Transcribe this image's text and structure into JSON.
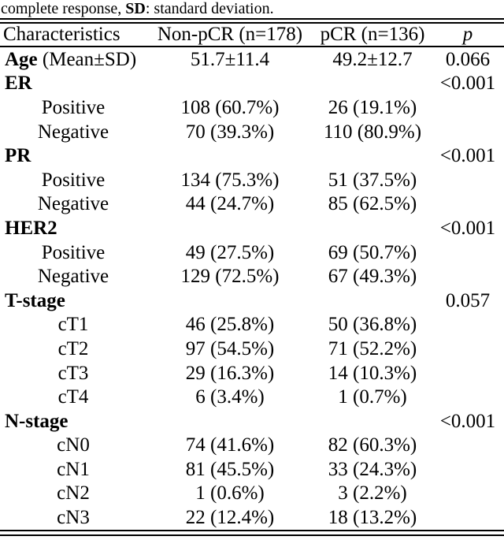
{
  "colors": {
    "background": "#ffffff",
    "text": "#000000",
    "rules": "#000000"
  },
  "caption": {
    "text_before": "complete response, ",
    "bold_term": "SD",
    "text_after": ": standard deviation."
  },
  "table": {
    "headers": {
      "characteristics": "Characteristics",
      "non_pcr": "Non-pCR (n=178)",
      "pcr": "pCR (n=136)",
      "p": "p"
    },
    "rows": [
      {
        "label": "Age",
        "bold": true,
        "rest": " (Mean±SD)",
        "indent": false,
        "non_pcr": "51.7±11.4",
        "pcr": "49.2±12.7",
        "p": "0.066"
      },
      {
        "label": "ER",
        "bold": true,
        "rest": "",
        "indent": false,
        "non_pcr": "",
        "pcr": "",
        "p": "<0.001"
      },
      {
        "label": "Positive",
        "bold": false,
        "rest": "",
        "indent": true,
        "non_pcr": "108 (60.7%)",
        "pcr": "26 (19.1%)",
        "p": ""
      },
      {
        "label": "Negative",
        "bold": false,
        "rest": "",
        "indent": true,
        "non_pcr": "70 (39.3%)",
        "pcr": "110 (80.9%)",
        "p": ""
      },
      {
        "label": "PR",
        "bold": true,
        "rest": "",
        "indent": false,
        "non_pcr": "",
        "pcr": "",
        "p": "<0.001"
      },
      {
        "label": "Positive",
        "bold": false,
        "rest": "",
        "indent": true,
        "non_pcr": "134 (75.3%)",
        "pcr": "51 (37.5%)",
        "p": ""
      },
      {
        "label": "Negative",
        "bold": false,
        "rest": "",
        "indent": true,
        "non_pcr": "44 (24.7%)",
        "pcr": "85 (62.5%)",
        "p": ""
      },
      {
        "label": "HER2",
        "bold": true,
        "rest": "",
        "indent": false,
        "non_pcr": "",
        "pcr": "",
        "p": "<0.001"
      },
      {
        "label": "Positive",
        "bold": false,
        "rest": "",
        "indent": true,
        "non_pcr": "49 (27.5%)",
        "pcr": "69 (50.7%)",
        "p": ""
      },
      {
        "label": "Negative",
        "bold": false,
        "rest": "",
        "indent": true,
        "non_pcr": "129 (72.5%)",
        "pcr": "67 (49.3%)",
        "p": ""
      },
      {
        "label": "T-stage",
        "bold": true,
        "rest": "",
        "indent": false,
        "non_pcr": "",
        "pcr": "",
        "p": "0.057"
      },
      {
        "label": "cT1",
        "bold": false,
        "rest": "",
        "indent": true,
        "non_pcr": "46 (25.8%)",
        "pcr": "50 (36.8%)",
        "p": ""
      },
      {
        "label": "cT2",
        "bold": false,
        "rest": "",
        "indent": true,
        "non_pcr": "97 (54.5%)",
        "pcr": "71 (52.2%)",
        "p": ""
      },
      {
        "label": "cT3",
        "bold": false,
        "rest": "",
        "indent": true,
        "non_pcr": "29 (16.3%)",
        "pcr": "14 (10.3%)",
        "p": ""
      },
      {
        "label": "cT4",
        "bold": false,
        "rest": "",
        "indent": true,
        "non_pcr": "6 (3.4%)",
        "pcr": "1 (0.7%)",
        "p": ""
      },
      {
        "label": "N-stage",
        "bold": true,
        "rest": "",
        "indent": false,
        "non_pcr": "",
        "pcr": "",
        "p": "<0.001"
      },
      {
        "label": "cN0",
        "bold": false,
        "rest": "",
        "indent": true,
        "non_pcr": "74 (41.6%)",
        "pcr": "82 (60.3%)",
        "p": ""
      },
      {
        "label": "cN1",
        "bold": false,
        "rest": "",
        "indent": true,
        "non_pcr": "81 (45.5%)",
        "pcr": "33 (24.3%)",
        "p": ""
      },
      {
        "label": "cN2",
        "bold": false,
        "rest": "",
        "indent": true,
        "non_pcr": "1 (0.6%)",
        "pcr": "3 (2.2%)",
        "p": ""
      },
      {
        "label": "cN3",
        "bold": false,
        "rest": "",
        "indent": true,
        "non_pcr": "22 (12.4%)",
        "pcr": "18 (13.2%)",
        "p": ""
      }
    ]
  }
}
